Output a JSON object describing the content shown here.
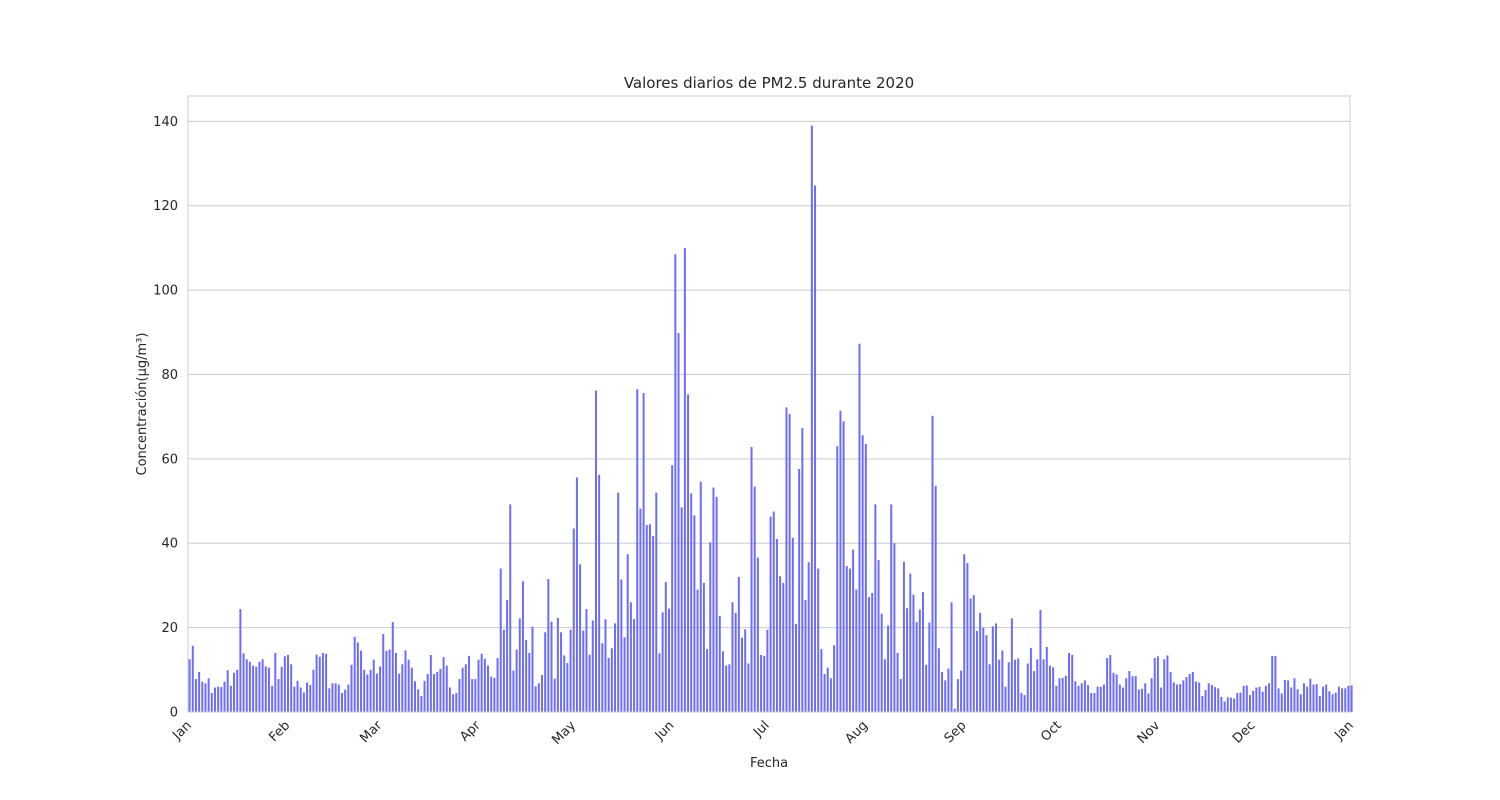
{
  "chart_data": {
    "type": "bar",
    "title": "Valores diarios de PM2.5 durante 2020",
    "xlabel": "Fecha",
    "ylabel": "Concentración(µg/m³)",
    "x_range": [
      "2020-01-01",
      "2021-01-01"
    ],
    "ylim": [
      0,
      146
    ],
    "y_ticks": [
      0,
      20,
      40,
      60,
      80,
      100,
      120,
      140
    ],
    "x_ticks": [
      {
        "date": "2020-01-01",
        "label": "Jan"
      },
      {
        "date": "2020-02-01",
        "label": "Feb"
      },
      {
        "date": "2020-03-01",
        "label": "Mar"
      },
      {
        "date": "2020-04-01",
        "label": "Apr"
      },
      {
        "date": "2020-05-01",
        "label": "May"
      },
      {
        "date": "2020-06-01",
        "label": "Jun"
      },
      {
        "date": "2020-07-01",
        "label": "Jul"
      },
      {
        "date": "2020-08-01",
        "label": "Aug"
      },
      {
        "date": "2020-09-01",
        "label": "Sep"
      },
      {
        "date": "2020-10-01",
        "label": "Oct"
      },
      {
        "date": "2020-11-01",
        "label": "Nov"
      },
      {
        "date": "2020-12-01",
        "label": "Dec"
      },
      {
        "date": "2021-01-01",
        "label": "Jan"
      }
    ],
    "grid": true,
    "bar_color": "#6b6bff",
    "start_date": "2020-01-01",
    "values": [
      12.5,
      15.7,
      7.8,
      9.5,
      7.2,
      6.8,
      8.0,
      4.5,
      5.8,
      6.0,
      5.9,
      7.2,
      9.9,
      6.2,
      9.3,
      10.0,
      24.4,
      13.9,
      12.5,
      11.9,
      11.0,
      10.7,
      11.9,
      12.5,
      10.8,
      10.5,
      6.2,
      14.0,
      7.8,
      10.7,
      13.2,
      13.5,
      11.3,
      6.0,
      7.4,
      5.8,
      4.6,
      7.0,
      6.4,
      10.0,
      13.6,
      13.1,
      14.0,
      13.8,
      5.6,
      6.8,
      6.8,
      6.5,
      4.5,
      5.3,
      6.5,
      11.2,
      17.8,
      16.5,
      14.5,
      10.0,
      8.9,
      10.0,
      12.4,
      9.1,
      10.8,
      18.5,
      14.5,
      14.8,
      21.3,
      14.0,
      9.1,
      11.3,
      14.6,
      12.4,
      10.5,
      7.3,
      5.4,
      3.8,
      7.4,
      9.0,
      13.5,
      9.0,
      9.5,
      10.2,
      13.0,
      11.0,
      5.8,
      4.2,
      4.5,
      7.8,
      10.5,
      11.3,
      13.3,
      7.8,
      7.8,
      12.4,
      13.8,
      12.6,
      11.0,
      8.4,
      8.1,
      12.8,
      34.0,
      19.5,
      26.5,
      49.2,
      9.8,
      14.8,
      22.2,
      31.0,
      17.1,
      14.0,
      20.2,
      6.1,
      6.8,
      8.8,
      18.9,
      31.5,
      21.4,
      7.9,
      22.3,
      18.9,
      13.4,
      11.6,
      19.5,
      43.5,
      55.6,
      35.0,
      19.3,
      24.4,
      13.6,
      21.7,
      76.2,
      56.2,
      16.3,
      22.0,
      12.8,
      15.1,
      21.0,
      52.0,
      31.4,
      17.7,
      37.4,
      26.0,
      22.0,
      76.5,
      48.2,
      75.6,
      44.3,
      44.5,
      41.7,
      52.0,
      13.9,
      23.6,
      30.8,
      24.5,
      58.5,
      108.5,
      89.8,
      48.5,
      110.0,
      75.3,
      51.8,
      46.6,
      29.0,
      54.6,
      30.6,
      14.9,
      40.2,
      53.2,
      51.0,
      22.8,
      14.4,
      11.0,
      11.3,
      26.0,
      23.5,
      32.0,
      17.6,
      19.6,
      11.5,
      62.8,
      53.4,
      36.6,
      13.5,
      13.3,
      19.5,
      46.3,
      47.5,
      41.0,
      32.2,
      30.6,
      72.2,
      70.6,
      41.3,
      20.9,
      57.6,
      67.3,
      26.5,
      35.5,
      139.0,
      124.8,
      34.0,
      14.9,
      9.0,
      10.5,
      8.0,
      15.8,
      63.0,
      71.4,
      68.9,
      34.6,
      34.0,
      38.5,
      29.0,
      87.3,
      65.6,
      63.5,
      27.2,
      28.2,
      49.2,
      36.0,
      23.3,
      12.5,
      20.5,
      49.2,
      40.0,
      14.0,
      7.8,
      35.6,
      24.6,
      32.8,
      27.8,
      21.3,
      24.3,
      28.4,
      11.2,
      21.2,
      70.2,
      53.6,
      15.1,
      9.5,
      7.5,
      10.3,
      26.0,
      0.8,
      7.8,
      9.8,
      37.4,
      35.3,
      26.9,
      27.7,
      19.2,
      23.5,
      20.0,
      18.2,
      11.3,
      20.3,
      21.0,
      12.4,
      14.6,
      6.0,
      11.8,
      22.2,
      12.4,
      12.7,
      4.5,
      4.0,
      11.5,
      15.2,
      9.7,
      12.5,
      24.2,
      12.5,
      15.4,
      11.0,
      10.6,
      6.2,
      8.0,
      8.1,
      8.6,
      14.0,
      13.5,
      7.3,
      6.2,
      6.8,
      7.5,
      6.4,
      4.5,
      4.5,
      6.0,
      6.0,
      6.5,
      12.8,
      13.5,
      9.3,
      8.9,
      6.5,
      5.8,
      8.0,
      9.7,
      8.5,
      8.5,
      5.3,
      5.5,
      6.8,
      4.4,
      8.0,
      12.8,
      13.2,
      5.8,
      12.5,
      13.4,
      9.5,
      7.0,
      6.5,
      6.6,
      7.5,
      8.3,
      9.0,
      9.5,
      7.2,
      7.0,
      3.8,
      5.2,
      6.8,
      6.4,
      5.9,
      5.6,
      3.6,
      2.5,
      3.5,
      3.4,
      3.2,
      4.5,
      4.6,
      6.2,
      6.3,
      4.0,
      5.0,
      5.8,
      6.0,
      4.8,
      6.2,
      6.8,
      13.3,
      13.3,
      5.6,
      4.4,
      7.6,
      7.5,
      5.8,
      8.0,
      5.4,
      4.2,
      6.8,
      6.0,
      7.9,
      6.5,
      6.6,
      3.8,
      6.0,
      6.5,
      4.9,
      4.2,
      4.6,
      6.0,
      5.6,
      5.6,
      6.2,
      6.3
    ]
  }
}
